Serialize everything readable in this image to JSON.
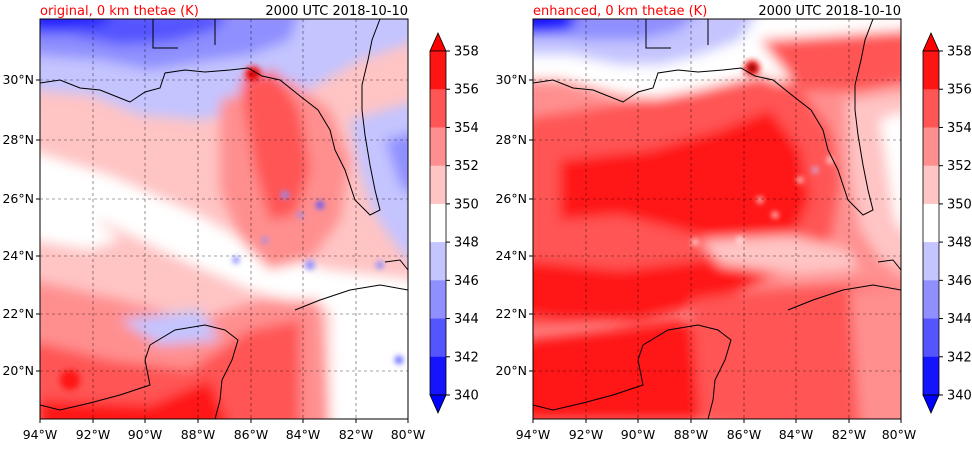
{
  "panels": [
    {
      "id": "original",
      "title": "original, 0 km thetae (K)",
      "time": "2000 UTC 2018-10-10",
      "x_ticks": [
        "94°W",
        "92°W",
        "90°W",
        "88°W",
        "86°W",
        "84°W",
        "82°W",
        "80°W"
      ],
      "y_ticks": [
        "30°N",
        "28°N",
        "26°N",
        "24°N",
        "22°N",
        "20°N"
      ]
    },
    {
      "id": "enhanced",
      "title": "enhanced, 0 km thetae (K)",
      "time": "2000 UTC 2018-10-10",
      "x_ticks": [
        "94°W",
        "92°W",
        "90°W",
        "88°W",
        "86°W",
        "84°W",
        "82°W",
        "80°W"
      ],
      "y_ticks": [
        "30°N",
        "28°N",
        "26°N",
        "24°N",
        "22°N",
        "20°N"
      ]
    }
  ],
  "colorbar": {
    "ticks": [
      "358",
      "356",
      "354",
      "352",
      "350",
      "348",
      "346",
      "344",
      "342",
      "340"
    ],
    "levels": [
      340,
      342,
      344,
      346,
      348,
      350,
      352,
      354,
      356,
      358
    ],
    "colors": [
      "#1414ff",
      "#5555ff",
      "#8f8fff",
      "#c4c4ff",
      "#ffffff",
      "#ffc4c4",
      "#ff8f8f",
      "#ff5555",
      "#ff1414"
    ],
    "over_color": "#ff0000",
    "under_color": "#0000ff"
  },
  "map": {
    "lon_range": [
      -94,
      -80
    ],
    "lat_range": [
      18.2,
      32
    ],
    "gridlines": "dashed"
  }
}
